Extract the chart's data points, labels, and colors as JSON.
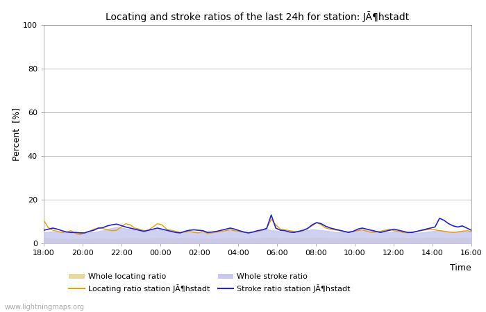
{
  "title": "Locating and stroke ratios of the last 24h for station: JÃ¶hstadt",
  "xlabel": "Time",
  "ylabel": "Percent  [%]",
  "ylim": [
    0,
    100
  ],
  "yticks": [
    0,
    20,
    40,
    60,
    80,
    100
  ],
  "xtick_labels": [
    "18:00",
    "20:00",
    "22:00",
    "00:00",
    "02:00",
    "04:00",
    "06:00",
    "08:00",
    "10:00",
    "12:00",
    "14:00",
    "16:00"
  ],
  "watermark": "www.lightningmaps.org",
  "bg_color": "#f8f8f8",
  "legend": [
    {
      "label": "Whole locating ratio",
      "color": "#e8d8a0",
      "type": "fill"
    },
    {
      "label": "Locating ratio station JÃ¶hstadt",
      "color": "#e8a000",
      "type": "line"
    },
    {
      "label": "Whole stroke ratio",
      "color": "#c8c8f0",
      "type": "fill"
    },
    {
      "label": "Stroke ratio station JÃ¶hstadt",
      "color": "#2222cc",
      "type": "line"
    }
  ],
  "whole_locating": [
    2.5,
    2.3,
    2.2,
    2.1,
    2.0,
    2.0,
    2.1,
    2.0,
    1.9,
    2.0,
    2.1,
    2.2,
    2.2,
    2.2,
    2.1,
    2.0,
    2.1,
    2.2,
    2.3,
    2.3,
    2.3,
    2.2,
    2.1,
    2.2,
    2.3,
    2.4,
    2.4,
    2.3,
    2.2,
    2.3,
    2.4,
    2.4,
    2.3,
    2.2,
    2.1,
    2.2,
    2.1,
    2.1,
    2.2,
    2.2,
    2.3,
    2.4,
    2.3,
    2.2,
    2.2,
    2.1,
    2.2,
    2.3,
    2.4,
    2.5,
    2.5,
    2.4,
    2.3,
    2.4,
    2.5,
    2.5,
    2.4,
    2.4,
    2.4,
    2.4,
    2.5,
    2.5,
    2.4,
    2.3,
    2.3,
    2.2,
    2.3,
    2.4,
    2.4,
    2.4,
    2.4,
    2.3,
    2.3,
    2.3,
    2.3,
    2.3,
    2.4,
    2.5,
    2.5,
    2.5,
    2.4,
    2.4,
    2.3,
    2.4,
    2.5,
    2.6,
    2.6,
    2.5,
    2.4,
    2.4,
    2.3,
    2.4,
    2.5,
    2.4,
    2.3
  ],
  "locating_station": [
    10.5,
    7.2,
    6.0,
    5.5,
    5.0,
    5.2,
    5.8,
    4.5,
    4.0,
    4.8,
    5.5,
    6.5,
    7.0,
    6.8,
    6.2,
    5.8,
    6.0,
    7.5,
    9.0,
    8.5,
    7.0,
    6.5,
    5.8,
    6.0,
    7.5,
    9.0,
    8.5,
    6.5,
    6.0,
    5.5,
    5.0,
    5.2,
    5.5,
    5.0,
    4.8,
    5.5,
    4.5,
    4.8,
    5.2,
    5.5,
    5.8,
    6.2,
    5.8,
    5.5,
    5.0,
    4.8,
    5.2,
    5.5,
    6.0,
    7.0,
    11.0,
    8.5,
    6.5,
    6.2,
    5.8,
    5.5,
    5.2,
    5.8,
    7.0,
    8.0,
    9.5,
    8.5,
    7.0,
    6.5,
    6.2,
    5.8,
    5.5,
    5.2,
    5.5,
    5.8,
    6.2,
    5.5,
    5.0,
    5.2,
    5.5,
    6.0,
    6.5,
    5.8,
    5.5,
    5.0,
    4.8,
    5.2,
    5.5,
    5.8,
    6.2,
    6.5,
    6.2,
    5.8,
    5.5,
    5.2,
    5.0,
    5.2,
    5.5,
    5.8,
    5.5
  ],
  "whole_stroke": [
    5.0,
    5.2,
    5.5,
    5.2,
    5.0,
    4.8,
    4.8,
    4.9,
    4.7,
    4.8,
    5.0,
    5.2,
    5.5,
    6.0,
    6.5,
    7.0,
    7.5,
    7.2,
    6.8,
    6.5,
    6.2,
    5.8,
    5.5,
    5.8,
    6.0,
    6.5,
    6.0,
    5.8,
    5.5,
    5.2,
    5.0,
    5.2,
    5.5,
    5.5,
    5.2,
    5.0,
    4.8,
    5.0,
    5.2,
    5.5,
    5.8,
    6.0,
    5.8,
    5.5,
    5.0,
    4.8,
    5.2,
    5.5,
    6.0,
    6.5,
    6.0,
    5.8,
    5.5,
    5.2,
    5.0,
    5.2,
    5.5,
    5.8,
    6.0,
    6.5,
    6.2,
    6.0,
    5.8,
    5.5,
    5.2,
    5.0,
    5.2,
    5.5,
    5.8,
    6.0,
    6.2,
    6.0,
    5.8,
    5.5,
    5.2,
    5.0,
    5.2,
    5.5,
    5.8,
    5.5,
    5.2,
    5.0,
    4.8,
    5.0,
    5.2,
    5.5,
    5.8,
    6.0,
    5.8,
    5.5,
    5.2,
    5.5,
    5.8,
    5.5,
    5.2
  ],
  "stroke_station": [
    6.0,
    6.5,
    7.0,
    6.5,
    5.8,
    5.2,
    5.0,
    5.0,
    4.8,
    4.8,
    5.5,
    6.0,
    7.0,
    7.2,
    8.0,
    8.5,
    8.8,
    8.2,
    7.5,
    7.0,
    6.5,
    6.0,
    5.5,
    6.0,
    6.5,
    7.0,
    6.5,
    6.0,
    5.5,
    5.0,
    4.8,
    5.5,
    6.0,
    6.2,
    6.0,
    5.8,
    5.0,
    5.2,
    5.5,
    6.0,
    6.5,
    7.0,
    6.5,
    5.8,
    5.2,
    4.8,
    5.2,
    5.8,
    6.2,
    6.8,
    13.0,
    7.0,
    6.0,
    5.8,
    5.2,
    5.0,
    5.5,
    6.0,
    6.8,
    8.5,
    9.5,
    9.0,
    7.8,
    7.0,
    6.5,
    6.0,
    5.5,
    5.0,
    5.5,
    6.5,
    7.0,
    6.5,
    6.0,
    5.5,
    5.0,
    5.5,
    6.0,
    6.5,
    6.0,
    5.5,
    5.0,
    5.0,
    5.5,
    6.0,
    6.5,
    7.0,
    7.5,
    11.5,
    10.5,
    9.0,
    8.0,
    7.5,
    8.0,
    7.0,
    6.0
  ]
}
